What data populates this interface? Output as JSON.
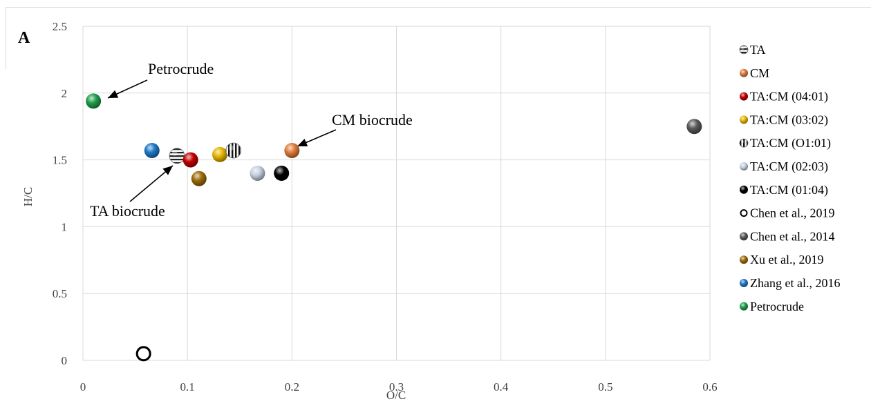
{
  "panel_label": "A",
  "chart_data": {
    "type": "scatter",
    "title": "",
    "xlabel": "O/C",
    "ylabel": "H/C",
    "xlim": [
      0,
      0.6
    ],
    "ylim": [
      0,
      2.5
    ],
    "x_ticks": [
      "0",
      "0.1",
      "0.2",
      "0.3",
      "0.4",
      "0.5",
      "0.6"
    ],
    "y_ticks": [
      "0",
      "0.5",
      "1",
      "1.5",
      "2",
      "2.5"
    ],
    "grid": true,
    "legend_position": "right",
    "series": [
      {
        "name": "TA",
        "x": 0.09,
        "y": 1.53,
        "marker": "striped-horizontal",
        "color": "#808080"
      },
      {
        "name": "CM",
        "x": 0.2,
        "y": 1.57,
        "marker": "ball",
        "color": "#e07b39"
      },
      {
        "name": "TA:CM (04:01)",
        "x": 0.103,
        "y": 1.5,
        "marker": "ball",
        "color": "#c00000"
      },
      {
        "name": "TA:CM (03:02)",
        "x": 0.131,
        "y": 1.54,
        "marker": "ball",
        "color": "#e6b400"
      },
      {
        "name": "TA:CM (O1:01)",
        "x": 0.144,
        "y": 1.57,
        "marker": "striped-vertical",
        "color": "#000000"
      },
      {
        "name": "TA:CM (02:03)",
        "x": 0.167,
        "y": 1.4,
        "marker": "ball",
        "color": "#c6d0e0"
      },
      {
        "name": "TA:CM (01:04)",
        "x": 0.19,
        "y": 1.4,
        "marker": "ball",
        "color": "#000000"
      },
      {
        "name": "Chen et al., 2019",
        "x": 0.058,
        "y": 0.05,
        "marker": "hollow",
        "color": "#000000"
      },
      {
        "name": "Chen et al., 2014",
        "x": 0.585,
        "y": 1.75,
        "marker": "ball",
        "color": "#595959"
      },
      {
        "name": "Xu et al., 2019",
        "x": 0.111,
        "y": 1.36,
        "marker": "ball",
        "color": "#9c6b0a"
      },
      {
        "name": "Zhang et al., 2016",
        "x": 0.066,
        "y": 1.57,
        "marker": "ball",
        "color": "#1f78c8"
      },
      {
        "name": "Petrocrude",
        "x": 0.01,
        "y": 1.94,
        "marker": "ball",
        "color": "#1e9e4a"
      }
    ],
    "annotations": [
      {
        "text": "Petrocrude",
        "target_series": "Petrocrude"
      },
      {
        "text": "CM biocrude",
        "target_series": "CM"
      },
      {
        "text": "TA biocrude",
        "target_series": "TA"
      }
    ]
  }
}
